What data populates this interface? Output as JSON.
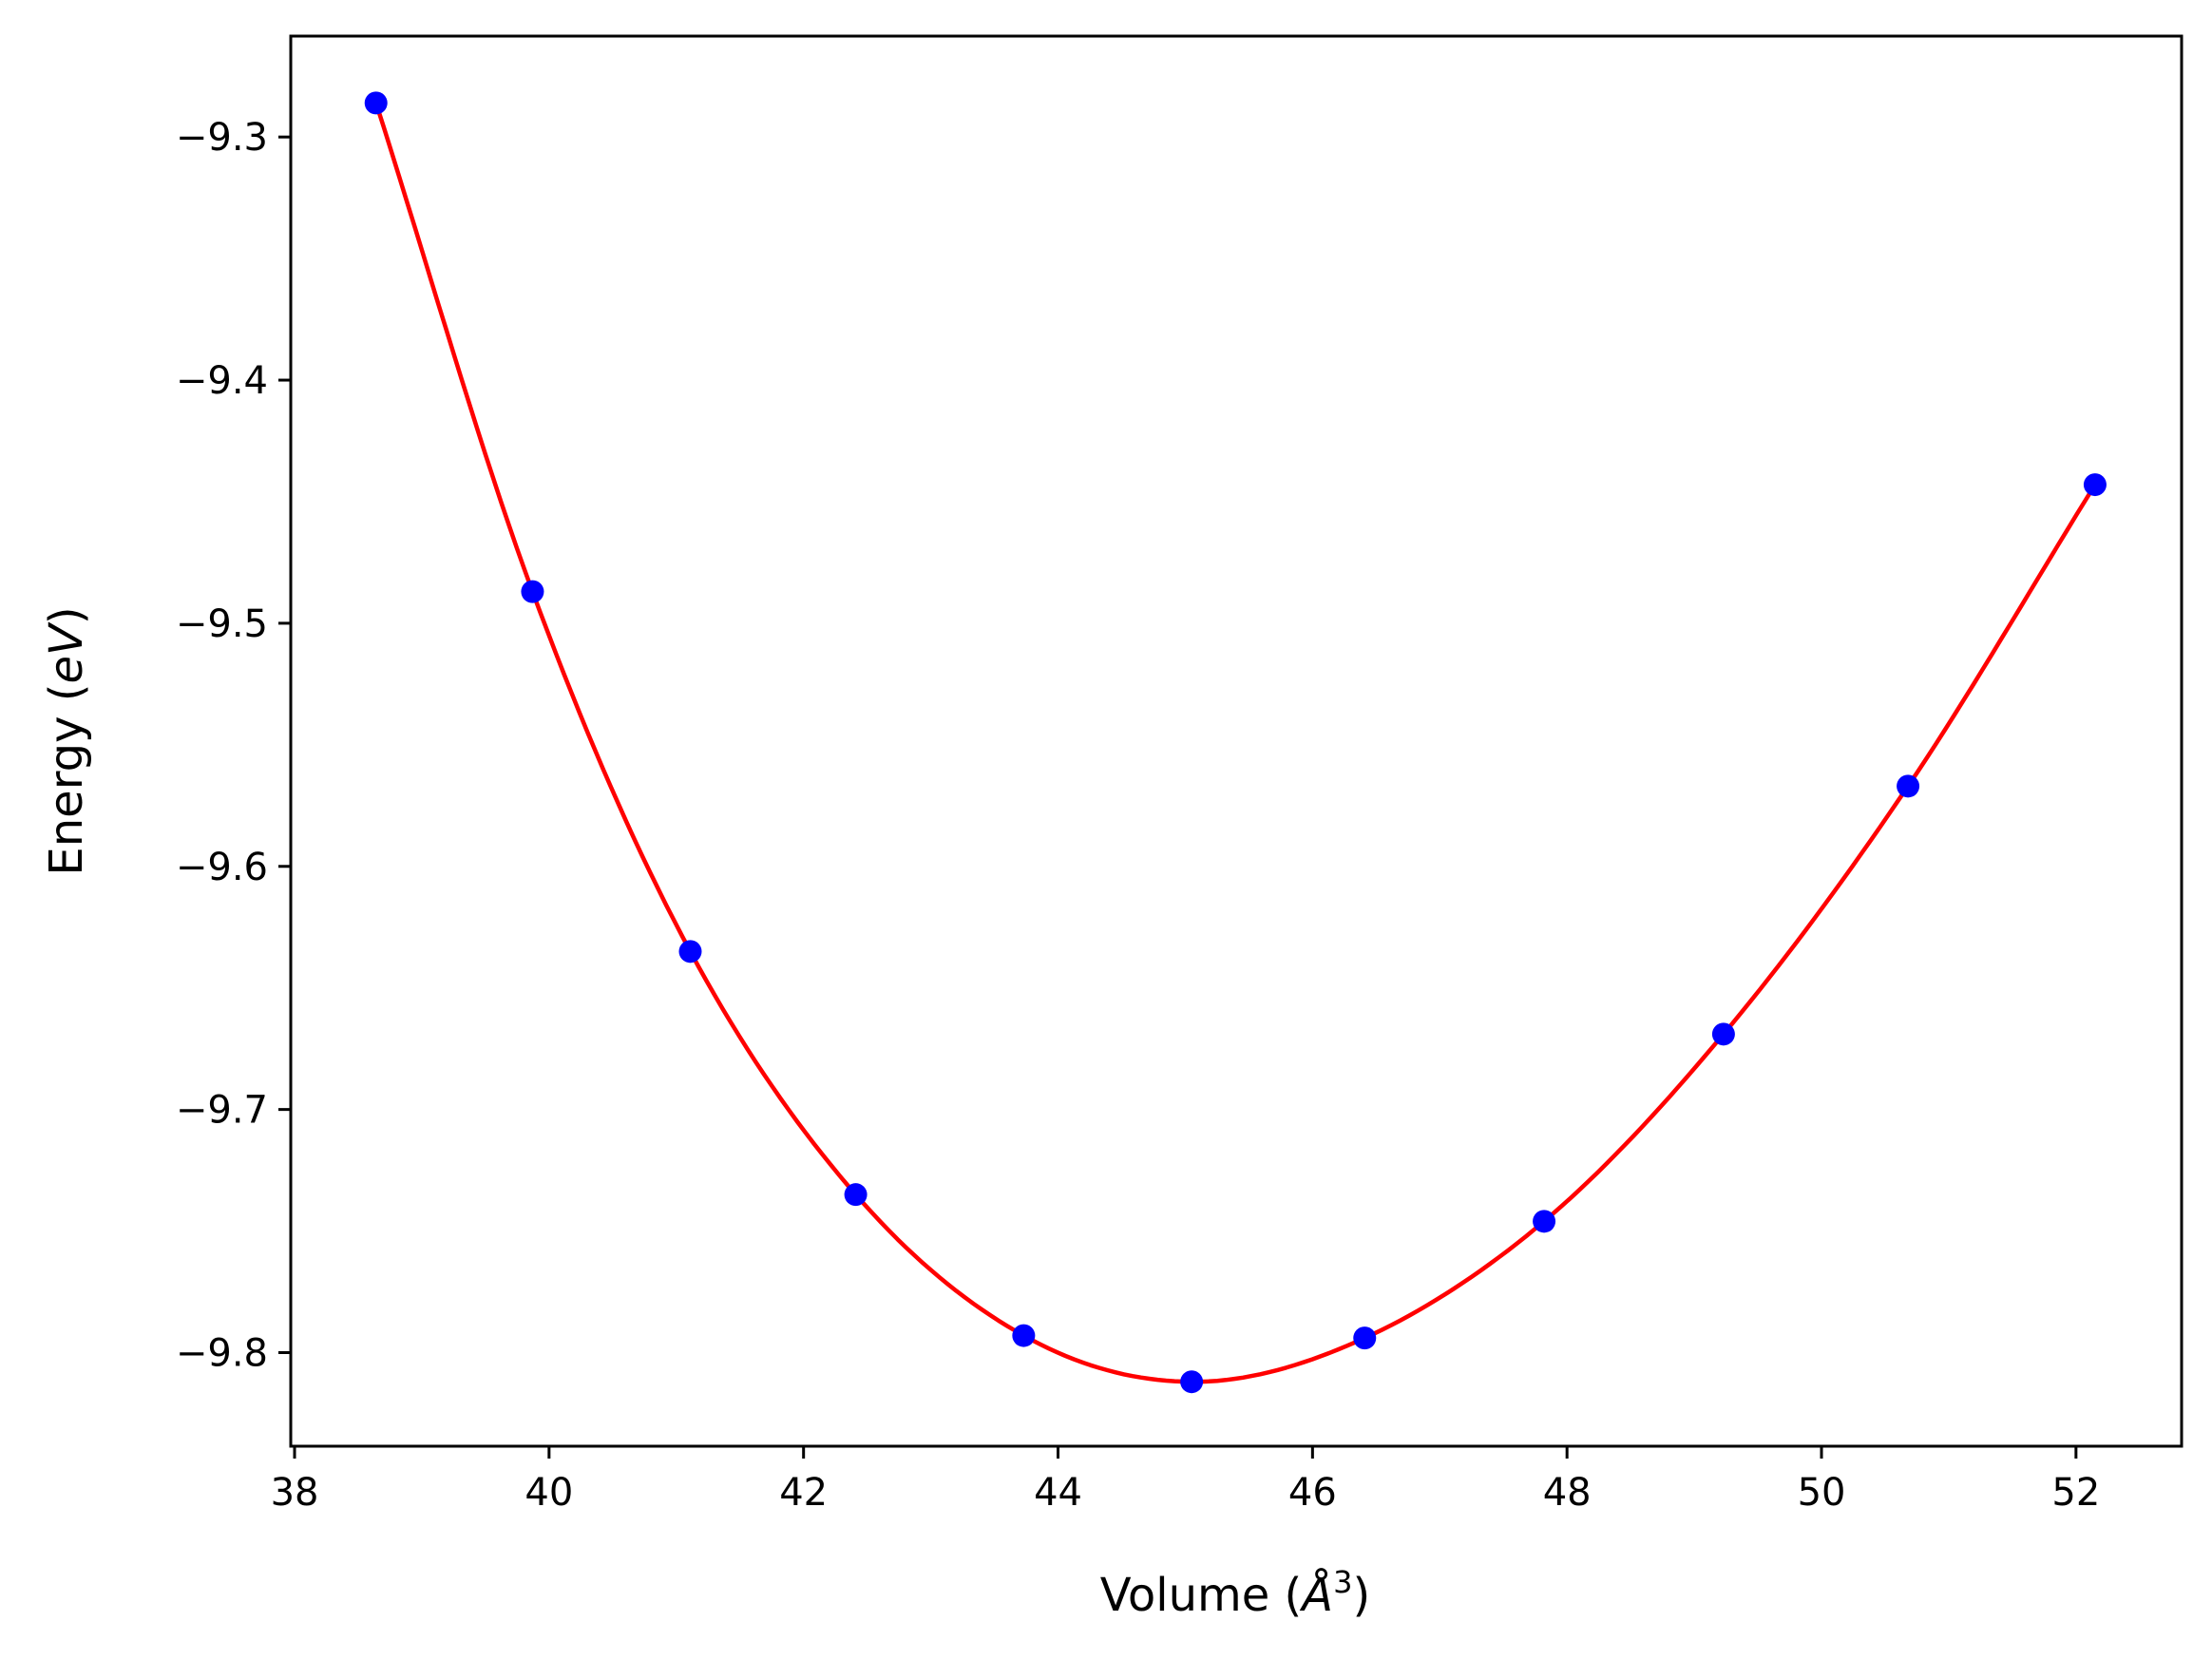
{
  "chart_data": {
    "type": "line",
    "title": "",
    "xlabel": "Volume (Å³)",
    "xlabel_parts": {
      "prefix": "Volume (",
      "unit": "Å",
      "sup": "3",
      "suffix": ")"
    },
    "ylabel": "Energy (eV)",
    "ylabel_parts": {
      "prefix": "Energy (",
      "unit": "eV",
      "suffix": ")"
    },
    "xlim": [
      37.97,
      52.83
    ],
    "ylim": [
      -9.8385,
      -9.2585
    ],
    "xticks": [
      38,
      40,
      42,
      44,
      46,
      48,
      50,
      52
    ],
    "xtick_labels": [
      "38",
      "40",
      "42",
      "44",
      "46",
      "48",
      "50",
      "52"
    ],
    "yticks": [
      -9.3,
      -9.4,
      -9.5,
      -9.6,
      -9.7,
      -9.8
    ],
    "ytick_labels": [
      "−9.3",
      "−9.4",
      "−9.5",
      "−9.6",
      "−9.7",
      "−9.8"
    ],
    "grid": false,
    "series": [
      {
        "name": "data",
        "kind": "scatter",
        "color": "#0000ff",
        "x": [
          38.64,
          39.87,
          41.11,
          42.41,
          43.73,
          45.05,
          46.41,
          47.82,
          49.23,
          50.68,
          52.15
        ],
        "y": [
          -9.286,
          -9.487,
          -9.635,
          -9.735,
          -9.793,
          -9.812,
          -9.794,
          -9.746,
          -9.669,
          -9.567,
          -9.443
        ]
      },
      {
        "name": "fit",
        "kind": "line",
        "color": "#ff0000",
        "x": [
          38.64,
          39.87,
          41.11,
          42.41,
          43.73,
          45.05,
          46.41,
          47.82,
          49.23,
          50.68,
          52.15
        ],
        "y": [
          -9.286,
          -9.487,
          -9.635,
          -9.735,
          -9.793,
          -9.812,
          -9.794,
          -9.746,
          -9.669,
          -9.567,
          -9.443
        ]
      }
    ]
  }
}
